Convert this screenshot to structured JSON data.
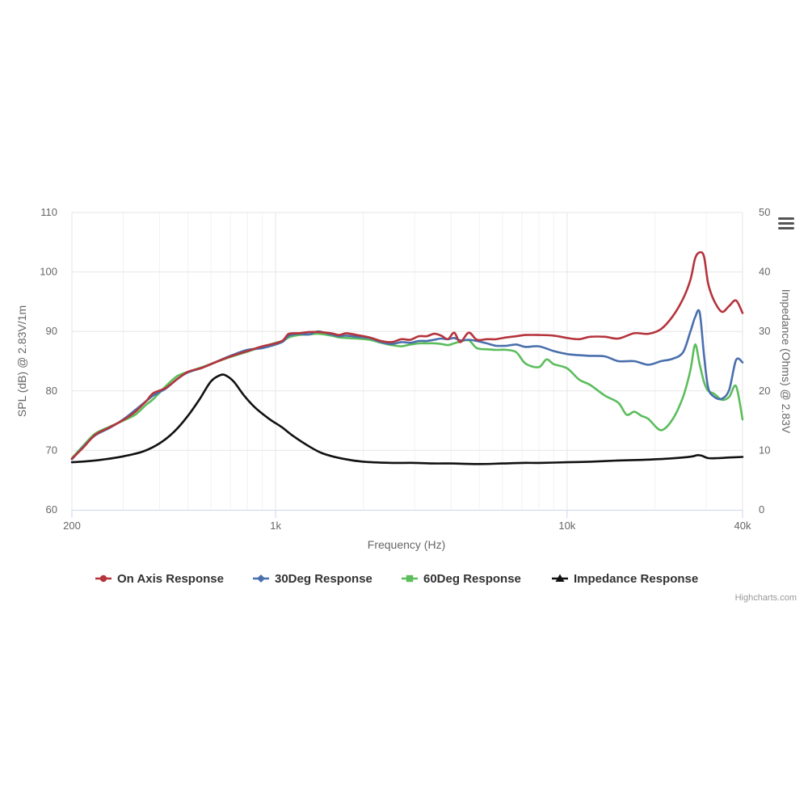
{
  "chart_data": {
    "type": "line",
    "xlabel": "Frequency (Hz)",
    "ylabel": "SPL (dB) @ 2.83V/1m",
    "y2label": "Impedance (Ohms) @ 2.83V",
    "x_scale": "log",
    "xlim": [
      200,
      40000
    ],
    "ylim": [
      60,
      110
    ],
    "y2lim": [
      0,
      50
    ],
    "x_ticks": [
      200,
      1000,
      10000,
      40000
    ],
    "x_tick_labels": [
      "200",
      "1k",
      "10k",
      "40k"
    ],
    "y_ticks": [
      60,
      70,
      80,
      90,
      100,
      110
    ],
    "y_tick_labels": [
      "60",
      "70",
      "80",
      "90",
      "100",
      "110"
    ],
    "y2_ticks": [
      0,
      10,
      20,
      30,
      40,
      50
    ],
    "y2_tick_labels": [
      "0",
      "10",
      "20",
      "30",
      "40",
      "50"
    ],
    "grid": true,
    "legend_position": "bottom",
    "credit": "Highcharts.com",
    "series": [
      {
        "name": "On Axis Response",
        "axis": "left",
        "color": "#b5343c",
        "marker": "circle",
        "points": [
          [
            200,
            68.6
          ],
          [
            220,
            70.6
          ],
          [
            240,
            72.6
          ],
          [
            270,
            73.9
          ],
          [
            300,
            75.1
          ],
          [
            330,
            76.5
          ],
          [
            360,
            78.3
          ],
          [
            380,
            79.6
          ],
          [
            420,
            80.5
          ],
          [
            460,
            82.0
          ],
          [
            500,
            83.2
          ],
          [
            560,
            83.9
          ],
          [
            620,
            84.8
          ],
          [
            700,
            85.8
          ],
          [
            800,
            86.7
          ],
          [
            900,
            87.5
          ],
          [
            1000,
            88.0
          ],
          [
            1060,
            88.5
          ],
          [
            1110,
            89.6
          ],
          [
            1200,
            89.7
          ],
          [
            1300,
            89.9
          ],
          [
            1400,
            89.9
          ],
          [
            1550,
            89.7
          ],
          [
            1650,
            89.4
          ],
          [
            1750,
            89.7
          ],
          [
            1900,
            89.4
          ],
          [
            2100,
            89.0
          ],
          [
            2300,
            88.4
          ],
          [
            2500,
            88.2
          ],
          [
            2700,
            88.7
          ],
          [
            2900,
            88.6
          ],
          [
            3100,
            89.2
          ],
          [
            3300,
            89.2
          ],
          [
            3500,
            89.6
          ],
          [
            3700,
            89.3
          ],
          [
            3900,
            88.7
          ],
          [
            4100,
            89.8
          ],
          [
            4300,
            88.2
          ],
          [
            4600,
            89.8
          ],
          [
            4900,
            88.6
          ],
          [
            5300,
            88.7
          ],
          [
            5700,
            88.7
          ],
          [
            6200,
            89.0
          ],
          [
            6700,
            89.2
          ],
          [
            7200,
            89.4
          ],
          [
            8000,
            89.4
          ],
          [
            9000,
            89.3
          ],
          [
            10000,
            88.9
          ],
          [
            11000,
            88.7
          ],
          [
            12000,
            89.1
          ],
          [
            13500,
            89.1
          ],
          [
            15000,
            88.8
          ],
          [
            17000,
            89.7
          ],
          [
            19000,
            89.6
          ],
          [
            21000,
            90.4
          ],
          [
            23000,
            92.5
          ],
          [
            25000,
            95.5
          ],
          [
            26500,
            98.7
          ],
          [
            27500,
            102.3
          ],
          [
            28500,
            103.3
          ],
          [
            29500,
            102.6
          ],
          [
            30500,
            98.0
          ],
          [
            32000,
            95.1
          ],
          [
            34000,
            93.3
          ],
          [
            36000,
            94.3
          ],
          [
            38000,
            95.2
          ],
          [
            40000,
            93.1
          ]
        ]
      },
      {
        "name": "30Deg Response",
        "axis": "left",
        "color": "#4a6fad",
        "marker": "diamond",
        "points": [
          [
            200,
            68.5
          ],
          [
            220,
            70.7
          ],
          [
            240,
            72.5
          ],
          [
            270,
            73.8
          ],
          [
            300,
            75.2
          ],
          [
            330,
            76.8
          ],
          [
            360,
            78.3
          ],
          [
            380,
            79.2
          ],
          [
            420,
            80.4
          ],
          [
            460,
            82.0
          ],
          [
            500,
            83.1
          ],
          [
            560,
            83.9
          ],
          [
            620,
            84.8
          ],
          [
            700,
            85.9
          ],
          [
            800,
            86.9
          ],
          [
            900,
            87.2
          ],
          [
            1000,
            87.8
          ],
          [
            1060,
            88.3
          ],
          [
            1110,
            89.3
          ],
          [
            1200,
            89.6
          ],
          [
            1300,
            89.5
          ],
          [
            1400,
            90.0
          ],
          [
            1550,
            89.5
          ],
          [
            1650,
            89.2
          ],
          [
            1750,
            89.3
          ],
          [
            1900,
            89.1
          ],
          [
            2100,
            88.9
          ],
          [
            2300,
            88.2
          ],
          [
            2500,
            87.9
          ],
          [
            2700,
            88.2
          ],
          [
            2900,
            88.1
          ],
          [
            3100,
            88.4
          ],
          [
            3300,
            88.4
          ],
          [
            3500,
            88.6
          ],
          [
            3700,
            88.8
          ],
          [
            3900,
            88.7
          ],
          [
            4100,
            88.9
          ],
          [
            4300,
            88.5
          ],
          [
            4600,
            88.6
          ],
          [
            4900,
            88.4
          ],
          [
            5300,
            88.0
          ],
          [
            5700,
            87.6
          ],
          [
            6200,
            87.6
          ],
          [
            6700,
            87.8
          ],
          [
            7200,
            87.4
          ],
          [
            8000,
            87.5
          ],
          [
            9000,
            86.7
          ],
          [
            10000,
            86.2
          ],
          [
            11000,
            86.0
          ],
          [
            12000,
            85.9
          ],
          [
            13500,
            85.8
          ],
          [
            15000,
            85.0
          ],
          [
            17000,
            85.0
          ],
          [
            19000,
            84.4
          ],
          [
            21000,
            85.0
          ],
          [
            23000,
            85.4
          ],
          [
            25000,
            86.5
          ],
          [
            26500,
            90.0
          ],
          [
            27500,
            92.4
          ],
          [
            28500,
            93.2
          ],
          [
            29500,
            86.0
          ],
          [
            30500,
            80.5
          ],
          [
            32000,
            79.0
          ],
          [
            34000,
            78.7
          ],
          [
            36000,
            80.2
          ],
          [
            38000,
            85.2
          ],
          [
            40000,
            84.8
          ]
        ]
      },
      {
        "name": "60Deg Response",
        "axis": "left",
        "color": "#5cbd5c",
        "marker": "square",
        "points": [
          [
            200,
            68.7
          ],
          [
            220,
            70.9
          ],
          [
            240,
            72.8
          ],
          [
            270,
            74.0
          ],
          [
            300,
            75.0
          ],
          [
            330,
            76.0
          ],
          [
            360,
            77.7
          ],
          [
            380,
            78.6
          ],
          [
            420,
            80.8
          ],
          [
            460,
            82.5
          ],
          [
            500,
            83.2
          ],
          [
            560,
            84.0
          ],
          [
            620,
            84.8
          ],
          [
            700,
            85.7
          ],
          [
            800,
            86.6
          ],
          [
            900,
            87.4
          ],
          [
            1000,
            88.1
          ],
          [
            1060,
            88.4
          ],
          [
            1110,
            89.0
          ],
          [
            1200,
            89.4
          ],
          [
            1300,
            89.5
          ],
          [
            1400,
            89.6
          ],
          [
            1550,
            89.3
          ],
          [
            1650,
            89.0
          ],
          [
            1750,
            88.9
          ],
          [
            1900,
            88.8
          ],
          [
            2100,
            88.6
          ],
          [
            2300,
            88.1
          ],
          [
            2500,
            87.7
          ],
          [
            2700,
            87.5
          ],
          [
            2900,
            87.8
          ],
          [
            3100,
            88.0
          ],
          [
            3300,
            88.0
          ],
          [
            3500,
            88.0
          ],
          [
            3700,
            87.9
          ],
          [
            3900,
            87.7
          ],
          [
            4100,
            88.0
          ],
          [
            4300,
            88.3
          ],
          [
            4600,
            88.5
          ],
          [
            4900,
            87.2
          ],
          [
            5300,
            87.0
          ],
          [
            5700,
            86.9
          ],
          [
            6200,
            86.9
          ],
          [
            6700,
            86.5
          ],
          [
            7200,
            84.6
          ],
          [
            8000,
            84.0
          ],
          [
            8500,
            85.3
          ],
          [
            9000,
            84.5
          ],
          [
            10000,
            83.8
          ],
          [
            11000,
            81.9
          ],
          [
            12000,
            81.0
          ],
          [
            13500,
            79.2
          ],
          [
            15000,
            78.0
          ],
          [
            16000,
            76.0
          ],
          [
            17000,
            76.5
          ],
          [
            18000,
            75.8
          ],
          [
            19000,
            75.3
          ],
          [
            21000,
            73.4
          ],
          [
            23000,
            75.2
          ],
          [
            25000,
            79.0
          ],
          [
            26500,
            83.5
          ],
          [
            27500,
            87.8
          ],
          [
            28500,
            84.5
          ],
          [
            29500,
            81.5
          ],
          [
            30500,
            80.0
          ],
          [
            32000,
            79.5
          ],
          [
            34000,
            78.5
          ],
          [
            36000,
            79.0
          ],
          [
            38000,
            80.8
          ],
          [
            40000,
            75.2
          ]
        ]
      },
      {
        "name": "Impedance Response",
        "axis": "right",
        "color": "#111111",
        "marker": "triangle",
        "points": [
          [
            200,
            8.0
          ],
          [
            230,
            8.2
          ],
          [
            260,
            8.5
          ],
          [
            300,
            9.0
          ],
          [
            350,
            9.8
          ],
          [
            400,
            11.2
          ],
          [
            450,
            13.2
          ],
          [
            500,
            15.8
          ],
          [
            550,
            18.7
          ],
          [
            600,
            21.6
          ],
          [
            650,
            22.7
          ],
          [
            680,
            22.5
          ],
          [
            720,
            21.5
          ],
          [
            780,
            19.2
          ],
          [
            850,
            17.2
          ],
          [
            950,
            15.3
          ],
          [
            1050,
            13.9
          ],
          [
            1150,
            12.4
          ],
          [
            1300,
            10.7
          ],
          [
            1450,
            9.5
          ],
          [
            1700,
            8.6
          ],
          [
            2000,
            8.1
          ],
          [
            2500,
            7.9
          ],
          [
            3000,
            7.9
          ],
          [
            3500,
            7.8
          ],
          [
            4000,
            7.8
          ],
          [
            5000,
            7.7
          ],
          [
            6000,
            7.8
          ],
          [
            7000,
            7.9
          ],
          [
            8000,
            7.9
          ],
          [
            10000,
            8.0
          ],
          [
            12000,
            8.1
          ],
          [
            15000,
            8.3
          ],
          [
            18000,
            8.4
          ],
          [
            22000,
            8.6
          ],
          [
            25000,
            8.8
          ],
          [
            27000,
            9.0
          ],
          [
            28000,
            9.2
          ],
          [
            29000,
            9.1
          ],
          [
            30500,
            8.7
          ],
          [
            33000,
            8.7
          ],
          [
            36000,
            8.8
          ],
          [
            40000,
            8.9
          ]
        ]
      }
    ]
  },
  "ui": {
    "menu_icon": "hamburger-menu-icon"
  }
}
